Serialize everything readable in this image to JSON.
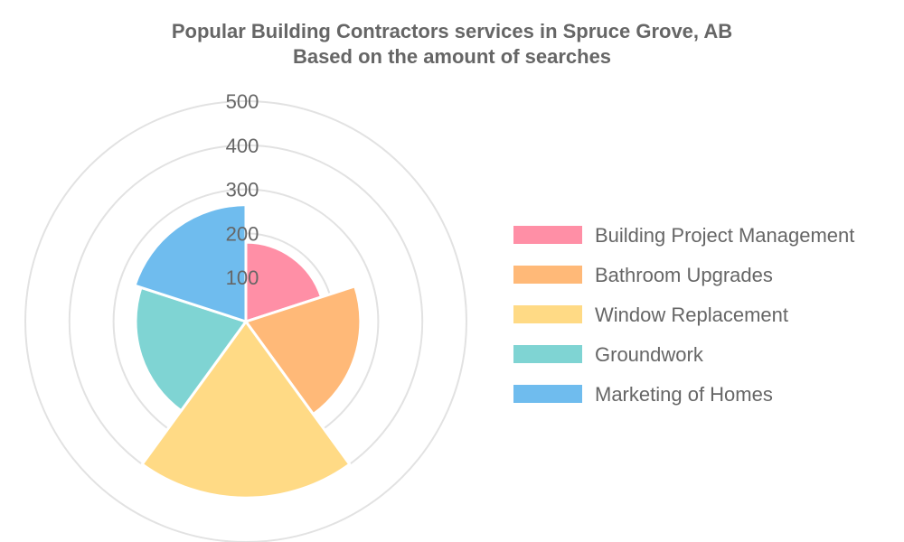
{
  "chart_data": {
    "type": "polarArea",
    "title": [
      "Popular Building Contractors services in Spruce Grove, AB",
      "Based on the amount of searches"
    ],
    "categories": [
      "Building Project Management",
      "Bathroom Upgrades",
      "Window Replacement",
      "Groundwork",
      "Marketing of Homes"
    ],
    "values": [
      180,
      260,
      400,
      250,
      265
    ],
    "colors": [
      "#ff8fa6",
      "#ffb978",
      "#ffda85",
      "#7fd4d3",
      "#6fbcee"
    ],
    "r_range": [
      0,
      500
    ],
    "r_ticks": [
      100,
      200,
      300,
      400,
      500
    ],
    "grid": true,
    "legend": "right"
  }
}
